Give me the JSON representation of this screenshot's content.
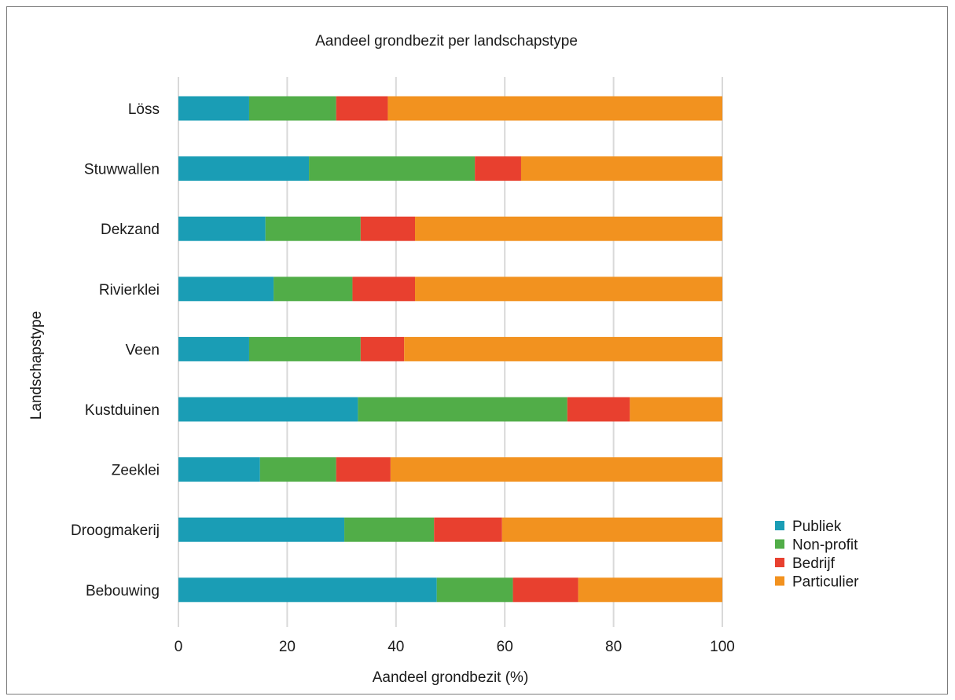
{
  "chart_data": {
    "type": "bar",
    "orientation": "horizontal",
    "stacked": true,
    "title": "Aandeel grondbezit per landschapstype",
    "xlabel": "Aandeel grondbezit (%)",
    "ylabel": "Landschapstype",
    "xlim": [
      0,
      100
    ],
    "xticks": [
      "0",
      "20",
      "40",
      "60",
      "80",
      "100"
    ],
    "grid": "vertical",
    "legend_position": "right",
    "categories": [
      "Löss",
      "Stuwwallen",
      "Dekzand",
      "Rivierklei",
      "Veen",
      "Kustduinen",
      "Zeeklei",
      "Droogmakerij",
      "Bebouwing"
    ],
    "series": [
      {
        "name": "Publiek",
        "color": "#1a9db5",
        "values": [
          13,
          24,
          16,
          17.5,
          13,
          33,
          15,
          30.5,
          47.5
        ]
      },
      {
        "name": "Non-profit",
        "color": "#51ad48",
        "values": [
          16,
          30.5,
          17.5,
          14.5,
          20.5,
          38.5,
          14,
          16.5,
          14
        ]
      },
      {
        "name": "Bedrijf",
        "color": "#e8402f",
        "values": [
          9.5,
          8.5,
          10,
          11.5,
          8,
          11.5,
          10,
          12.5,
          12
        ]
      },
      {
        "name": "Particulier",
        "color": "#f2921f",
        "values": [
          61.5,
          37,
          56.5,
          56.5,
          58.5,
          17,
          61,
          40.5,
          26.5
        ]
      }
    ]
  }
}
